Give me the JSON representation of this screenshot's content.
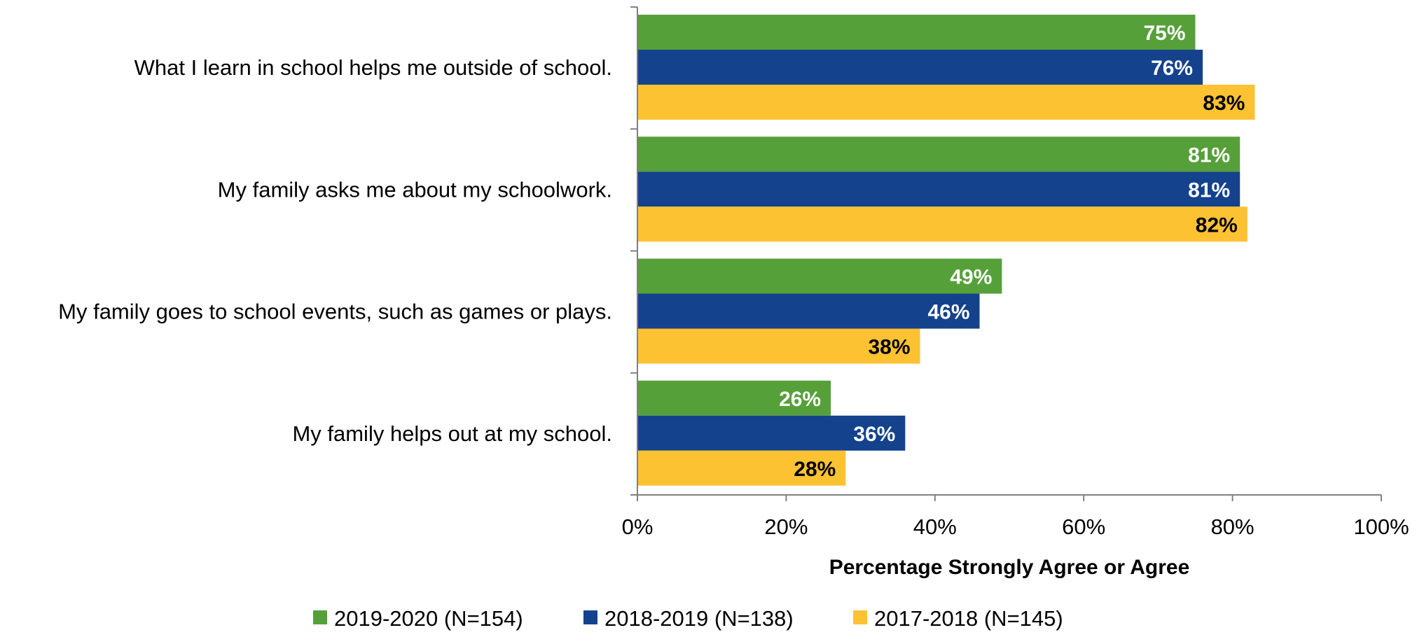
{
  "chart_data": {
    "type": "bar",
    "orientation": "horizontal",
    "categories": [
      "What I learn in school helps me outside of school.",
      "My family asks me about my schoolwork.",
      "My family goes to school events, such as games or plays.",
      "My family helps out at my school."
    ],
    "series": [
      {
        "name": "2019-2020 (N=154)",
        "color": "#56A03A",
        "label_color": "#ffffff",
        "values": [
          75,
          81,
          49,
          26
        ]
      },
      {
        "name": "2018-2019 (N=138)",
        "color": "#14428C",
        "label_color": "#ffffff",
        "values": [
          76,
          81,
          46,
          36
        ]
      },
      {
        "name": "2017-2018 (N=145)",
        "color": "#FDC232",
        "label_color": "#000000",
        "values": [
          83,
          82,
          38,
          28
        ]
      }
    ],
    "xlabel": "Percentage Strongly Agree or Agree",
    "ylabel": "",
    "xlim": [
      0,
      100
    ],
    "xticks": [
      "0%",
      "20%",
      "40%",
      "60%",
      "80%",
      "100%"
    ],
    "value_suffix": "%",
    "grid": false,
    "legend_position": "bottom"
  }
}
